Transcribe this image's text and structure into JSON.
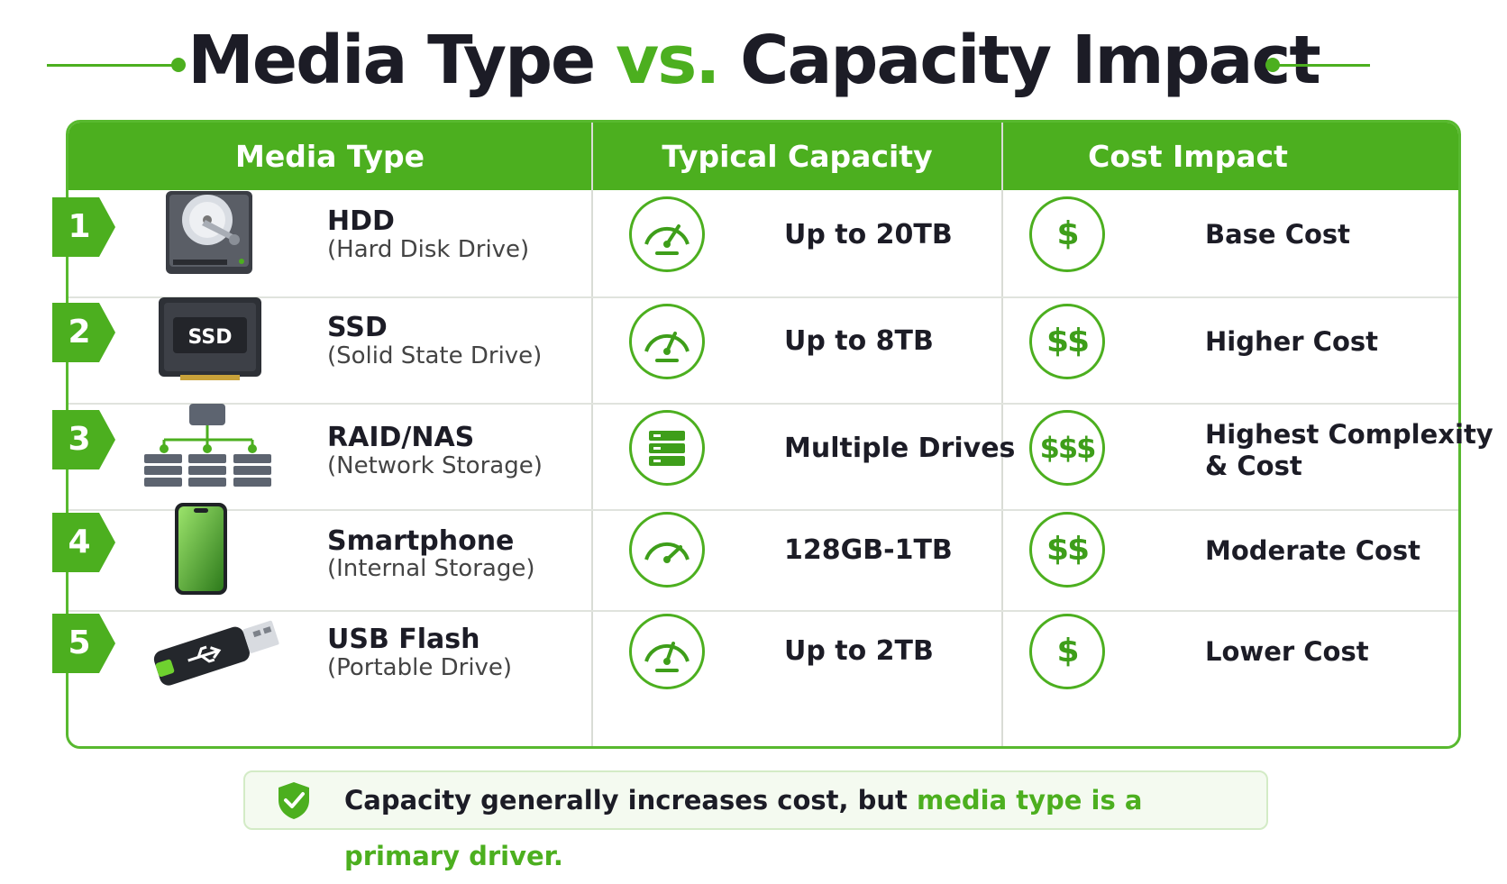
{
  "title": {
    "part1": "Media Type ",
    "accent": "vs.",
    "part2": " Capacity Impact"
  },
  "colors": {
    "accent": "#4caf1f",
    "text": "#1c1c26"
  },
  "headers": [
    "Media Type",
    "Typical Capacity",
    "Cost Impact"
  ],
  "rows": [
    {
      "num": "1",
      "icon": "hdd-icon",
      "name": "HDD",
      "sub": "(Hard Disk Drive)",
      "capacity": "Up to 20TB",
      "capacity_icon": "gauge-icon",
      "cost_symbol": "$",
      "cost": "Base Cost"
    },
    {
      "num": "2",
      "icon": "ssd-icon",
      "ssd_label": "SSD",
      "name": "SSD",
      "sub": "(Solid State Drive)",
      "capacity": "Up to 8TB",
      "capacity_icon": "gauge-icon",
      "cost_symbol": "$$",
      "cost": "Higher Cost"
    },
    {
      "num": "3",
      "icon": "network-storage-icon",
      "name": "RAID/NAS",
      "sub": "(Network Storage)",
      "capacity": "Multiple Drives",
      "capacity_icon": "server-stack-icon",
      "cost_symbol": "$$$",
      "cost_line1": "Highest Complexity",
      "cost_line2": "& Cost"
    },
    {
      "num": "4",
      "icon": "smartphone-icon",
      "name": "Smartphone",
      "sub": "(Internal Storage)",
      "capacity": "128GB-1TB",
      "capacity_icon": "gauge-icon",
      "cost_symbol": "$$",
      "cost": "Moderate Cost"
    },
    {
      "num": "5",
      "icon": "usb-flash-icon",
      "name": "USB Flash",
      "sub": "(Portable Drive)",
      "capacity": "Up to 2TB",
      "capacity_icon": "gauge-icon",
      "cost_symbol": "$",
      "cost": "Lower Cost"
    }
  ],
  "footer": {
    "text": "Capacity generally increases cost, but ",
    "highlight": "media type is a primary driver.",
    "icon": "shield-check-icon"
  }
}
